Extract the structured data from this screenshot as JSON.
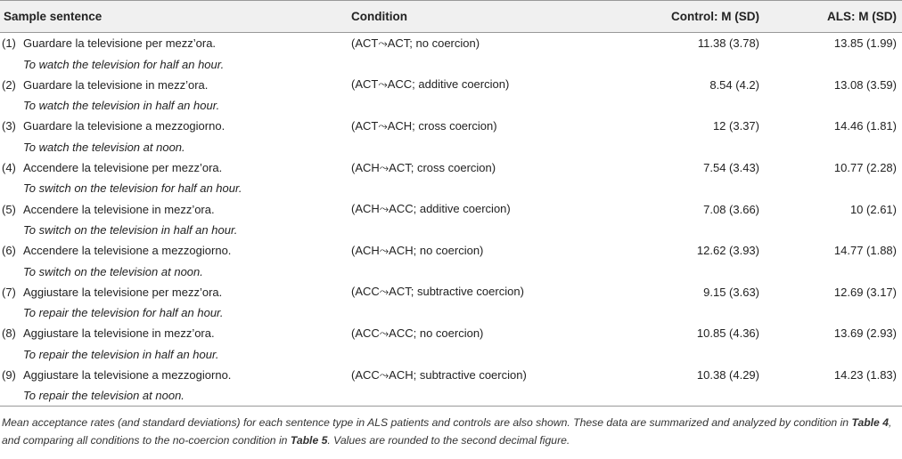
{
  "headers": {
    "sentence": "Sample sentence",
    "condition": "Condition",
    "control": "Control: M (SD)",
    "als": "ALS: M (SD)"
  },
  "rows": [
    {
      "num": "(1)",
      "sentence": "Guardare la televisione per mezz’ora.",
      "translation": "To watch the television for half an hour.",
      "condition": "(ACT⤳ACT; no coercion)",
      "control": "11.38 (3.78)",
      "als": "13.85 (1.99)"
    },
    {
      "num": "(2)",
      "sentence": "Guardare la televisione in mezz’ora.",
      "translation": "To watch the television in half an hour.",
      "condition": "(ACT⤳ACC; additive coercion)",
      "control": "8.54 (4.2)",
      "als": "13.08 (3.59)"
    },
    {
      "num": "(3)",
      "sentence": "Guardare la televisione a mezzogiorno.",
      "translation": "To watch the television at noon.",
      "condition": "(ACT⤳ACH; cross coercion)",
      "control": "12 (3.37)",
      "als": "14.46 (1.81)"
    },
    {
      "num": "(4)",
      "sentence": "Accendere la televisione per mezz’ora.",
      "translation": "To switch on the television for half an hour.",
      "condition": "(ACH⤳ACT; cross coercion)",
      "control": "7.54 (3.43)",
      "als": "10.77 (2.28)"
    },
    {
      "num": "(5)",
      "sentence": "Accendere la televisione in mezz’ora.",
      "translation": "To switch on the television in half an hour.",
      "condition": "(ACH⤳ACC; additive coercion)",
      "control": "7.08 (3.66)",
      "als": "10 (2.61)"
    },
    {
      "num": "(6)",
      "sentence": "Accendere la televisione a mezzogiorno.",
      "translation": "To switch on the television at noon.",
      "condition": "(ACH⤳ACH; no coercion)",
      "control": "12.62 (3.93)",
      "als": "14.77 (1.88)"
    },
    {
      "num": "(7)",
      "sentence": "Aggiustare la televisione per mezz’ora.",
      "translation": "To repair the television for half an hour.",
      "condition": "(ACC⤳ACT; subtractive coercion)",
      "control": "9.15 (3.63)",
      "als": "12.69 (3.17)"
    },
    {
      "num": "(8)",
      "sentence": "Aggiustare la televisione in mezz’ora.",
      "translation": "To repair the television in half an hour.",
      "condition": "(ACC⤳ACC; no coercion)",
      "control": "10.85 (4.36)",
      "als": "13.69 (2.93)"
    },
    {
      "num": "(9)",
      "sentence": "Aggiustare la televisione a mezzogiorno.",
      "translation": "To repair the television at noon.",
      "condition": "(ACC⤳ACH; subtractive coercion)",
      "control": "10.38 (4.29)",
      "als": "14.23 (1.83)"
    }
  ],
  "caption": {
    "part1": "Mean acceptance rates (and standard deviations) for each sentence type in ALS patients and controls are also shown. These data are summarized and analyzed by condition in ",
    "ref1": "Table 4",
    "part2": ", and comparing all conditions to the no-coercion condition in ",
    "ref2": "Table 5",
    "part3": ". Values are rounded to the second decimal figure."
  }
}
